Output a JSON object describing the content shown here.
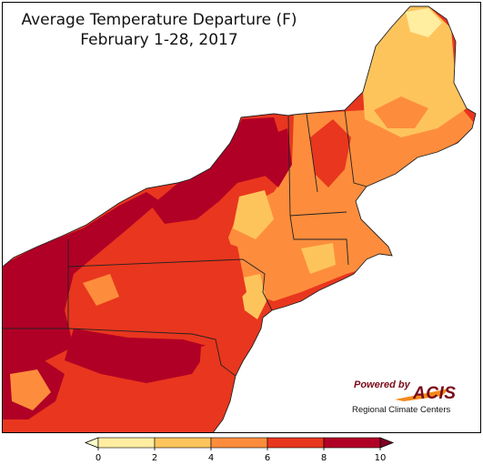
{
  "title": {
    "line1": "Average Temperature Departure (F)",
    "line2": "February 1-28, 2017"
  },
  "legend": {
    "ticks": [
      "0",
      "2",
      "4",
      "6",
      "8",
      "10"
    ],
    "bins": [
      {
        "range": "0-2",
        "color": "#ffeda0"
      },
      {
        "range": "2-4",
        "color": "#fec45c"
      },
      {
        "range": "4-6",
        "color": "#fd8d3c"
      },
      {
        "range": "6-8",
        "color": "#e9361e"
      },
      {
        "range": "8-10",
        "color": "#b10026"
      }
    ],
    "below_color": "#ffffcc",
    "above_color": "#800026"
  },
  "logo": {
    "powered_by": "Powered by",
    "acis": "ACIS",
    "rcc": "Regional Climate Centers"
  },
  "map": {
    "water_color": "#ffffff",
    "border_color": "#222222",
    "region": "Northeast United States"
  }
}
